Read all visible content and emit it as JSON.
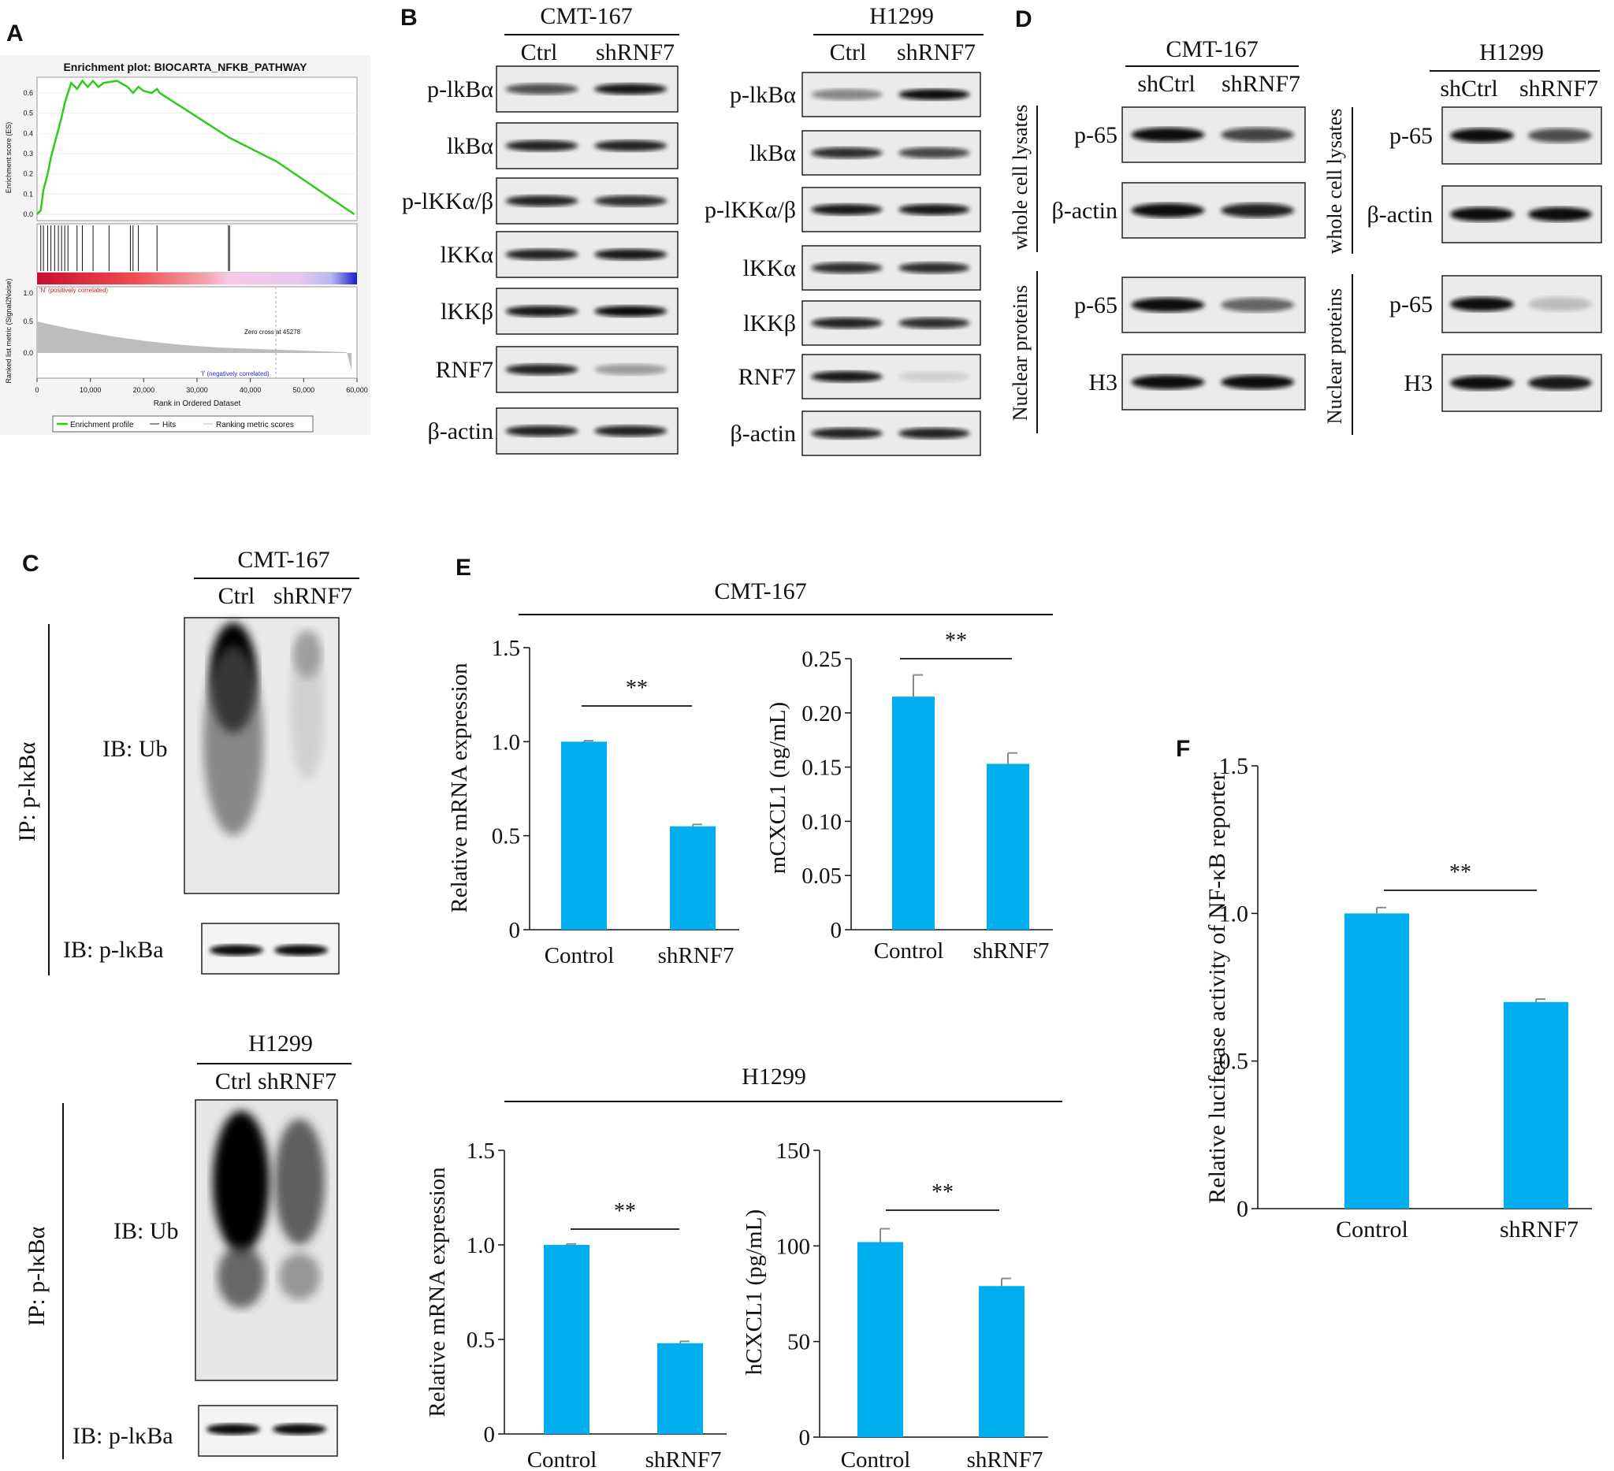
{
  "panel_letters": [
    "A",
    "B",
    "C",
    "D",
    "E",
    "F"
  ],
  "panelA": {
    "title": "Enrichment plot: BIOCARTA_NFKB_PATHWAY",
    "es_ylabel": "Enrichment score (ES)",
    "es_ticks": [
      "0.6",
      "0.5",
      "0.4",
      "0.3",
      "0.2",
      "0.1",
      "0.0"
    ],
    "rank_ylabel": "Ranked list metric (Signal2Noise)",
    "rank_ticks": [
      "1.0",
      "0.5",
      "0.0"
    ],
    "pos_label": "'N' (positively correlated)",
    "neg_label": "'I' (negatively correlated)",
    "zero_cross": "Zero cross at 45278",
    "x_ticks": [
      "0",
      "10,000",
      "20,000",
      "30,000",
      "40,000",
      "50,000",
      "60,000"
    ],
    "xlabel": "Rank in Ordered Dataset",
    "legend": [
      "Enrichment profile",
      "Hits",
      "Ranking metric scores"
    ],
    "colors": {
      "profile": "#2ecc1a",
      "pos": "#e32028",
      "neg": "#2020d0"
    }
  },
  "panelB": {
    "left": {
      "cell": "CMT-167",
      "cols": [
        "Ctrl",
        "shRNF7"
      ],
      "rows": [
        "p-lkBα",
        "lkBα",
        "p-lKKα/β",
        "lKKα",
        "lKKβ",
        "RNF7",
        "β-actin"
      ]
    },
    "right": {
      "cell": "H1299",
      "cols": [
        "Ctrl",
        "shRNF7"
      ],
      "rows": [
        "p-lkBα",
        "lkBα",
        "p-lKKα/β",
        "lKKα",
        "lKKβ",
        "RNF7",
        "β-actin"
      ]
    }
  },
  "panelC": {
    "top": {
      "cell": "CMT-167",
      "cols": [
        "Ctrl",
        "shRNF7"
      ],
      "ip": "IP: p-lκBα",
      "ib1": "IB: Ub",
      "ib2": "IB: p-lκBa"
    },
    "bottom": {
      "cell": "H1299",
      "cols": "Ctrl shRNF7",
      "ip": "IP: p-lκBα",
      "ib1": "IB: Ub",
      "ib2": "IB: p-lκBa"
    }
  },
  "panelD": {
    "left": {
      "cell": "CMT-167",
      "cols": [
        "shCtrl",
        "shRNF7"
      ],
      "wcl": "whole cell lysates",
      "nuc": "Nuclear proteins",
      "rows": [
        "p-65",
        "β-actin",
        "p-65",
        "H3"
      ]
    },
    "right": {
      "cell": "H1299",
      "cols": [
        "shCtrl",
        "shRNF7"
      ],
      "wcl": "whole cell lysates",
      "nuc": "Nuclear proteins",
      "rows": [
        "p-65",
        "β-actin",
        "p-65",
        "H3"
      ]
    }
  },
  "panelE": {
    "group_top": "CMT-167",
    "group_bottom": "H1299"
  },
  "chart_data": [
    {
      "id": "E1",
      "type": "bar",
      "categories": [
        "Control",
        "shRNF7"
      ],
      "values": [
        1.0,
        0.55
      ],
      "errors": [
        0.005,
        0.01
      ],
      "ylabel": "Relative mRNA expression",
      "ylim": [
        0,
        1.5
      ],
      "yticks": [
        "0",
        "0.5",
        "1.0",
        "1.5"
      ],
      "significance": "**"
    },
    {
      "id": "E2",
      "type": "bar",
      "categories": [
        "Control",
        "shRNF7"
      ],
      "values": [
        0.215,
        0.153
      ],
      "errors": [
        0.02,
        0.01
      ],
      "ylabel": "mCXCL1 (ng/mL)",
      "ylim": [
        0,
        0.25
      ],
      "yticks": [
        "0",
        "0.05",
        "0.10",
        "0.15",
        "0.20",
        "0.25"
      ],
      "significance": "**"
    },
    {
      "id": "E3",
      "type": "bar",
      "categories": [
        "Control",
        "shRNF7"
      ],
      "values": [
        1.0,
        0.48
      ],
      "errors": [
        0.005,
        0.01
      ],
      "ylabel": "Relative mRNA expression",
      "ylim": [
        0,
        1.5
      ],
      "yticks": [
        "0",
        "0.5",
        "1.0",
        "1.5"
      ],
      "significance": "**"
    },
    {
      "id": "E4",
      "type": "bar",
      "categories": [
        "Control",
        "shRNF7"
      ],
      "values": [
        102,
        79
      ],
      "errors": [
        7,
        4
      ],
      "ylabel": "hCXCL1 (pg/mL)",
      "ylim": [
        0,
        150
      ],
      "yticks": [
        "0",
        "50",
        "100",
        "150"
      ],
      "significance": "**"
    },
    {
      "id": "F",
      "type": "bar",
      "categories": [
        "Control",
        "shRNF7"
      ],
      "values": [
        1.0,
        0.7
      ],
      "errors": [
        0.02,
        0.01
      ],
      "ylabel": "Relative luciferase activity of NF-κB reporter",
      "ylim": [
        0,
        1.5
      ],
      "yticks": [
        "0",
        "0.5",
        "1.0",
        "1.5"
      ],
      "significance": "**"
    }
  ],
  "bar_color": "#00adef"
}
